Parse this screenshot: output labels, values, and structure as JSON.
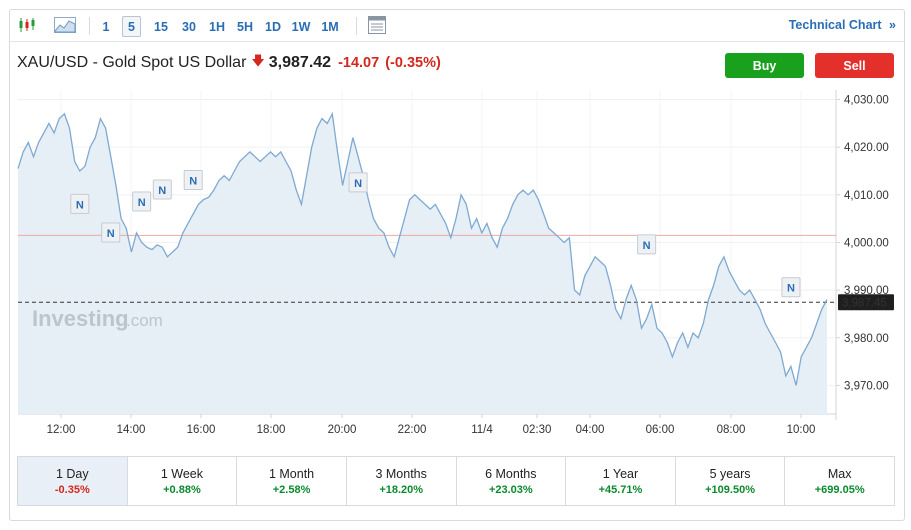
{
  "toolbar": {
    "chart_type_icons": [
      "candlestick-icon",
      "area-chart-icon"
    ],
    "timeframes": [
      "1",
      "5",
      "15",
      "30",
      "1H",
      "5H",
      "1D",
      "1W",
      "1M"
    ],
    "active_timeframe": "5",
    "settings_icon": "indicators-icon",
    "technical_chart_label": "Technical Chart",
    "technical_chart_icon": "double-chevron-right-icon"
  },
  "header": {
    "symbol": "XAU/USD - Gold Spot US Dollar",
    "direction_icon": "down-arrow-icon",
    "price": "3,987.42",
    "change": "-14.07",
    "change_pct": "(-0.35%)"
  },
  "actions": {
    "buy_label": "Buy",
    "sell_label": "Sell"
  },
  "watermark": {
    "brand": "Investing",
    "suffix": ".com"
  },
  "chart_data": {
    "type": "area",
    "x_ticks": [
      "12:00",
      "14:00",
      "16:00",
      "18:00",
      "20:00",
      "22:00",
      "11/4",
      "02:30",
      "04:00",
      "06:00",
      "08:00",
      "10:00"
    ],
    "y_ticks": [
      "4,030.00",
      "4,020.00",
      "4,010.00",
      "4,000.00",
      "3,990.00",
      "3,980.00",
      "3,970.00"
    ],
    "ylim": [
      3964,
      4032
    ],
    "reference_level": 4001.5,
    "current_price_label": "3,987.45",
    "current_price": 3987.45,
    "values": [
      4015.5,
      4019,
      4021,
      4018,
      4021,
      4023,
      4025,
      4023,
      4026,
      4027,
      4024,
      4017,
      4015,
      4016,
      4020,
      4022,
      4026,
      4024,
      4018,
      4012,
      4005,
      4003,
      3998,
      4002,
      4000,
      3999,
      3998.5,
      3999.5,
      3999,
      3997,
      3998,
      3999,
      4002,
      4004,
      4006,
      4008,
      4009,
      4009.5,
      4011,
      4013,
      4014,
      4013,
      4015,
      4017,
      4018,
      4019,
      4018,
      4017,
      4018,
      4019,
      4018,
      4019,
      4017,
      4015,
      4011,
      4008,
      4014,
      4020,
      4024,
      4026,
      4025,
      4027,
      4019,
      4012,
      4017,
      4022,
      4018,
      4014,
      4009,
      4005,
      4003,
      4002,
      3999,
      3997,
      4001,
      4005,
      4009,
      4010,
      4009,
      4008,
      4007,
      4008,
      4006,
      4004,
      4001,
      4005,
      4010,
      4008,
      4003,
      4005,
      4002,
      4004,
      4001,
      3999,
      4003,
      4005,
      4008,
      4010,
      4011,
      4010,
      4011,
      4009,
      4006,
      4003,
      4002,
      4001,
      4000,
      4001,
      3990,
      3989,
      3993,
      3995,
      3997,
      3996,
      3995,
      3991,
      3986,
      3984,
      3988,
      3991,
      3988,
      3982,
      3984,
      3987,
      3982,
      3981,
      3979,
      3976,
      3979,
      3981,
      3978,
      3981,
      3980,
      3983,
      3988,
      3991,
      3995,
      3997,
      3994,
      3992,
      3990,
      3989,
      3990,
      3988,
      3986,
      3983,
      3981,
      3979,
      3977,
      3972,
      3974,
      3970,
      3976,
      3978,
      3980,
      3983,
      3986,
      3988
    ],
    "news_markers": [
      {
        "label": "N",
        "index": 12,
        "value": 4008
      },
      {
        "label": "N",
        "index": 18,
        "value": 4002
      },
      {
        "label": "N",
        "index": 24,
        "value": 4008.5
      },
      {
        "label": "N",
        "index": 28,
        "value": 4011
      },
      {
        "label": "N",
        "index": 34,
        "value": 4013
      },
      {
        "label": "N",
        "index": 66,
        "value": 4012.5
      },
      {
        "label": "N",
        "index": 122,
        "value": 3999.5
      },
      {
        "label": "N",
        "index": 150,
        "value": 3990.5
      }
    ],
    "grid": true
  },
  "periods": [
    {
      "label": "1 Day",
      "value": "-0.35%",
      "dir": "down"
    },
    {
      "label": "1 Week",
      "value": "+0.88%",
      "dir": "up"
    },
    {
      "label": "1 Month",
      "value": "+2.58%",
      "dir": "up"
    },
    {
      "label": "3 Months",
      "value": "+18.20%",
      "dir": "up"
    },
    {
      "label": "6 Months",
      "value": "+23.03%",
      "dir": "up"
    },
    {
      "label": "1 Year",
      "value": "+45.71%",
      "dir": "up"
    },
    {
      "label": "5 years",
      "value": "+109.50%",
      "dir": "up"
    },
    {
      "label": "Max",
      "value": "+699.05%",
      "dir": "up"
    }
  ],
  "active_period": "1 Day",
  "colors": {
    "accent": "#2a6db5",
    "line": "#7fa9d1",
    "area_fill": "#e6eef6",
    "up": "#0a8a2e",
    "down": "#d3281d",
    "buy": "#19a11d",
    "sell": "#e4302a"
  }
}
